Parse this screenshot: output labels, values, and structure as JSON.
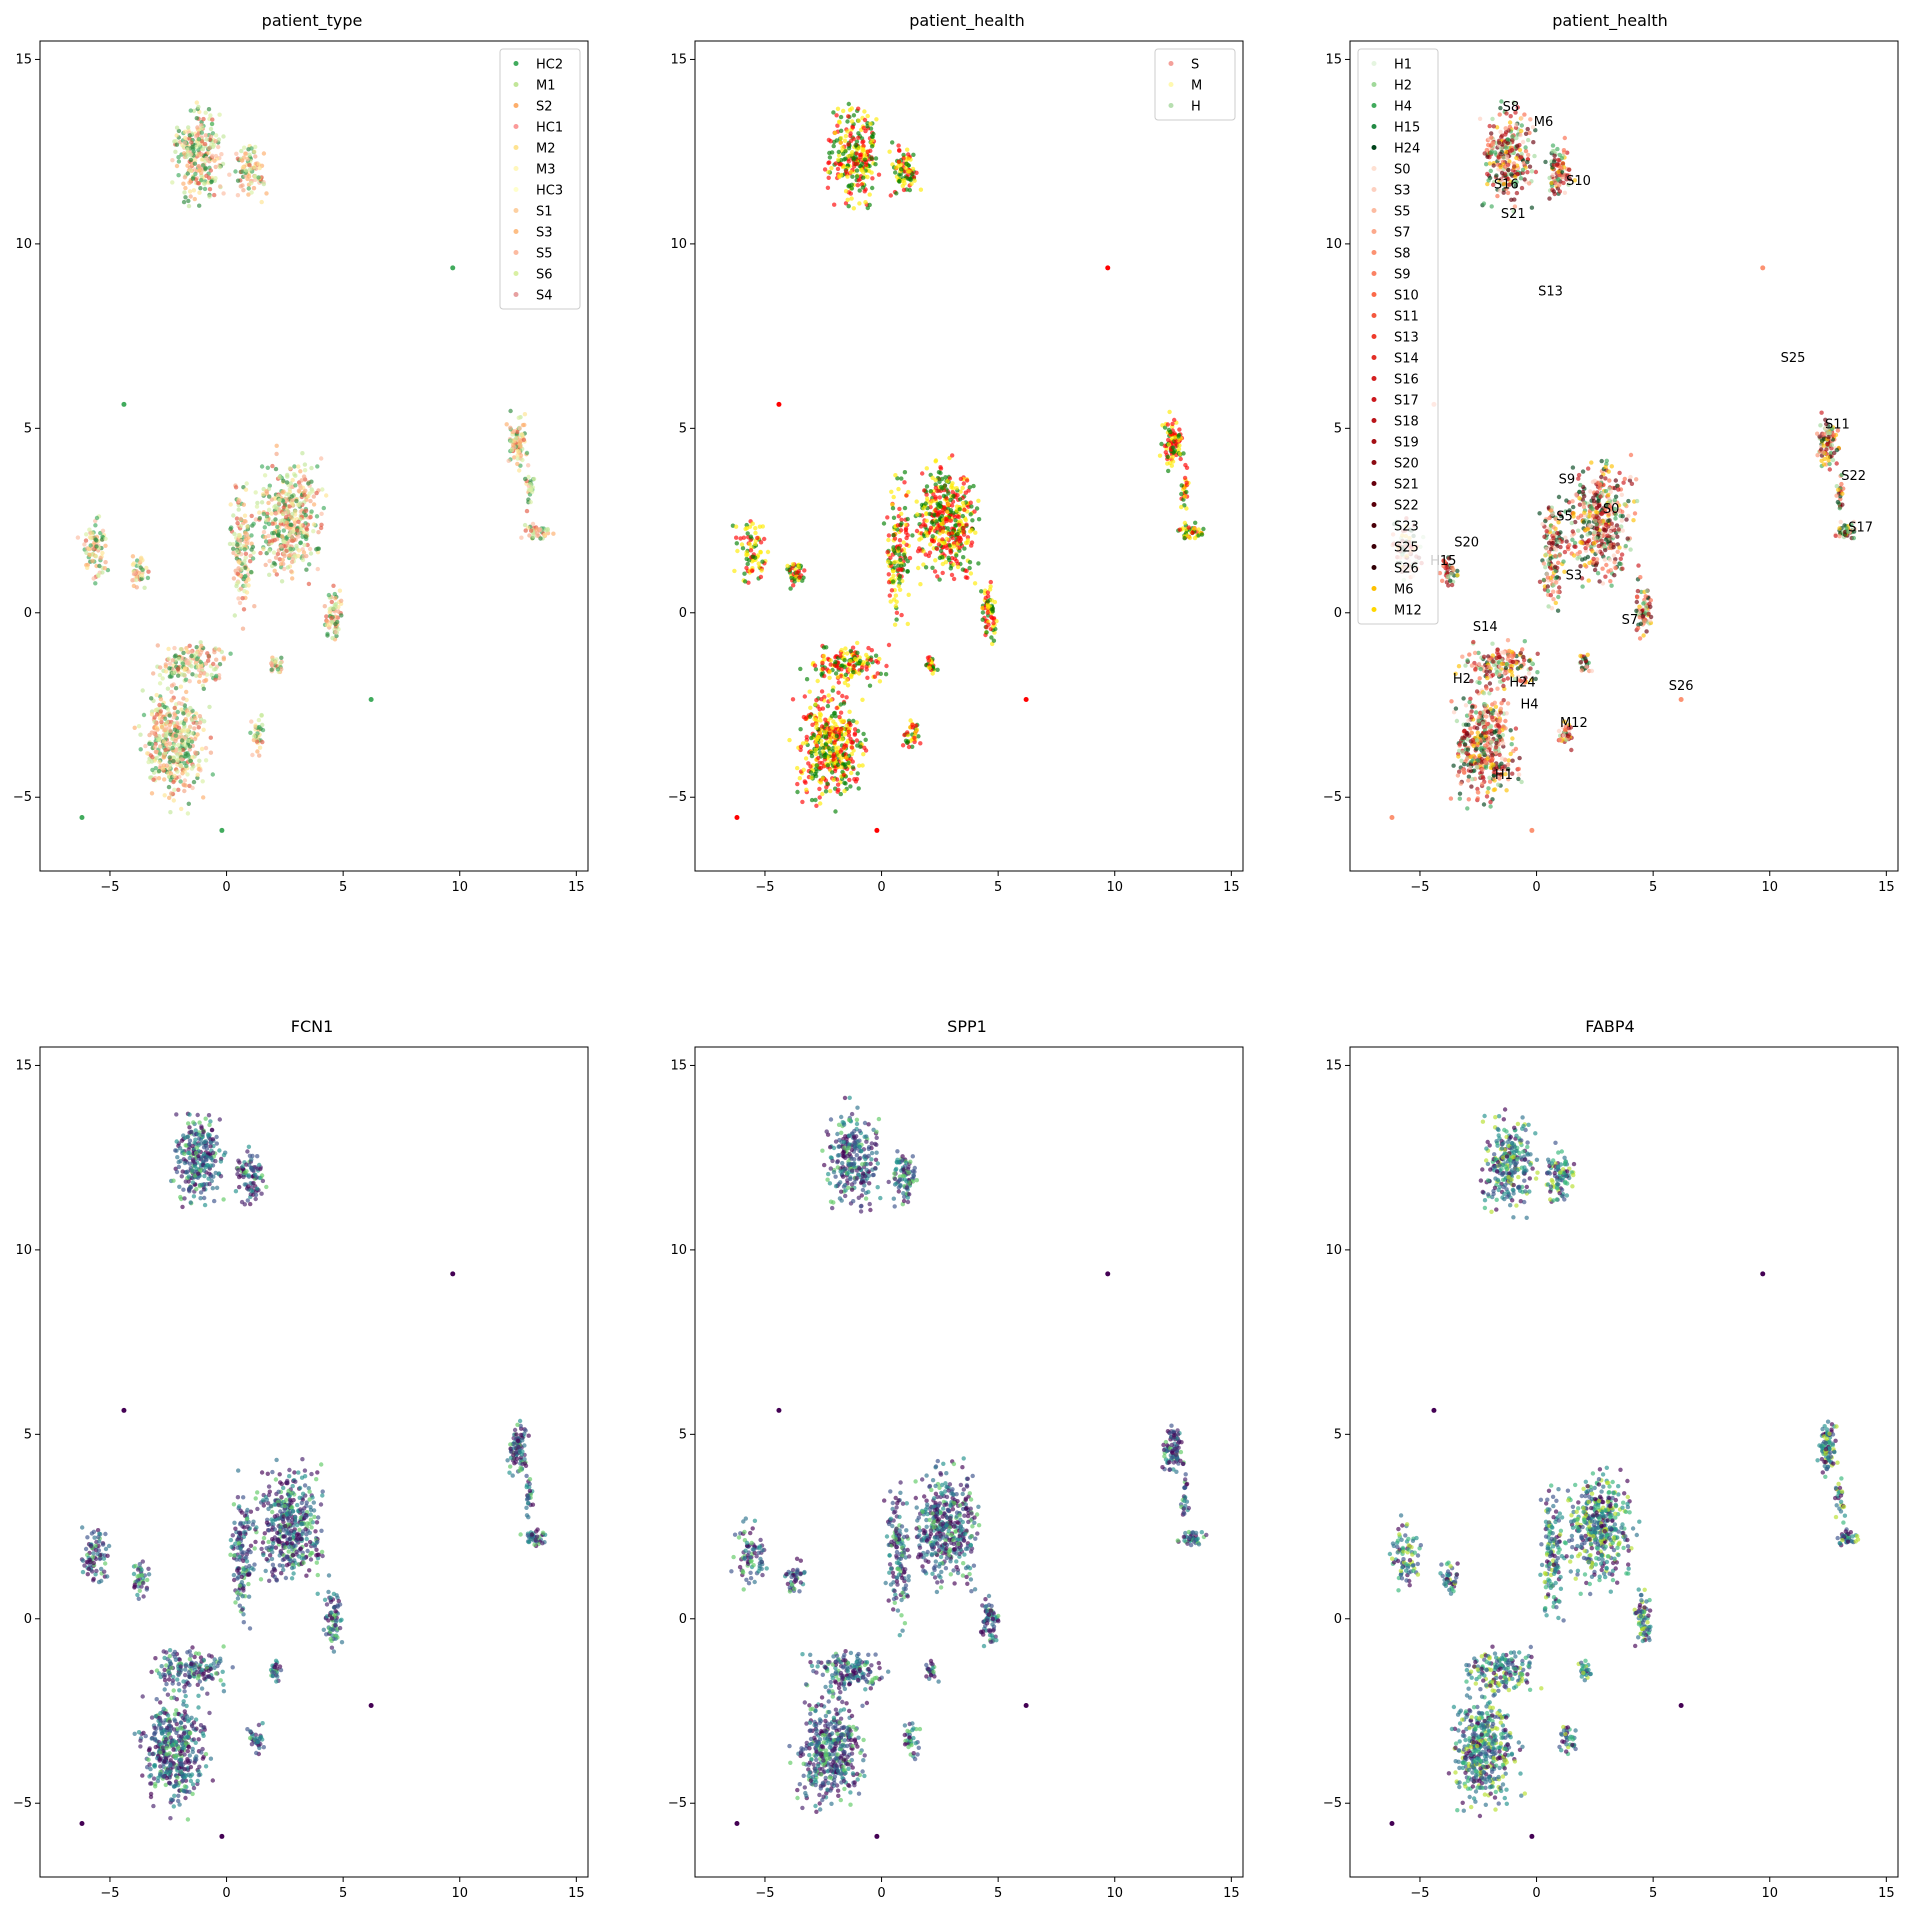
{
  "figure": {
    "panels": [
      {
        "title": "patient_type"
      },
      {
        "title": "patient_health"
      },
      {
        "title": "patient_health"
      },
      {
        "title": "FCN1"
      },
      {
        "title": "SPP1"
      },
      {
        "title": "FABP4"
      }
    ]
  },
  "chart_data": [
    {
      "type": "scatter",
      "title": "patient_type",
      "xlabel": "",
      "ylabel": "",
      "xlim": [
        -8,
        15.5
      ],
      "ylim": [
        -7,
        15.5
      ],
      "xticks": [
        -5,
        0,
        5,
        10,
        15
      ],
      "yticks": [
        -5,
        0,
        5,
        10,
        15
      ],
      "grid": false,
      "legend_position": "upper right",
      "legend": [
        {
          "label": "HC2",
          "color": "#41ab5d"
        },
        {
          "label": "M1",
          "color": "#c2e699"
        },
        {
          "label": "S2",
          "color": "#fdae6b"
        },
        {
          "label": "HC1",
          "color": "#fb9a99"
        },
        {
          "label": "M2",
          "color": "#fee391"
        },
        {
          "label": "M3",
          "color": "#fff7bc"
        },
        {
          "label": "HC3",
          "color": "#ffffcc"
        },
        {
          "label": "S1",
          "color": "#fdd0a2"
        },
        {
          "label": "S3",
          "color": "#fdbe85"
        },
        {
          "label": "S5",
          "color": "#fcbba1"
        },
        {
          "label": "S6",
          "color": "#d9f0a3"
        },
        {
          "label": "S4",
          "color": "#e7a0a0"
        }
      ],
      "colors": [
        "#41ab5d",
        "#2e8b3d",
        "#c2e699",
        "#e35b45",
        "#fdae6b",
        "#f4a582",
        "#fee391",
        "#d9f0a3",
        "#fcbba1"
      ]
    },
    {
      "type": "scatter",
      "title": "patient_health",
      "xlabel": "",
      "ylabel": "",
      "xlim": [
        -8,
        15.5
      ],
      "ylim": [
        -7,
        15.5
      ],
      "xticks": [
        -5,
        0,
        5,
        10,
        15
      ],
      "yticks": [
        -5,
        0,
        5,
        10,
        15
      ],
      "grid": false,
      "legend_position": "upper right",
      "legend": [
        {
          "label": "S",
          "color": "#f4a09a"
        },
        {
          "label": "M",
          "color": "#fff9b0"
        },
        {
          "label": "H",
          "color": "#b7dfb0"
        }
      ],
      "colors": [
        "#ff0000",
        "#ffeb00",
        "#008000"
      ]
    },
    {
      "type": "scatter",
      "title": "patient_health",
      "xlabel": "",
      "ylabel": "",
      "xlim": [
        -8,
        15.5
      ],
      "ylim": [
        -7,
        15.5
      ],
      "xticks": [
        -5,
        0,
        5,
        10,
        15
      ],
      "yticks": [
        -5,
        0,
        5,
        10,
        15
      ],
      "grid": false,
      "legend_position": "upper left",
      "legend": [
        {
          "label": "H1",
          "color": "#e5f5e0"
        },
        {
          "label": "H2",
          "color": "#a1d99b"
        },
        {
          "label": "H4",
          "color": "#41ab5d"
        },
        {
          "label": "H15",
          "color": "#238b45"
        },
        {
          "label": "H24",
          "color": "#00441b"
        },
        {
          "label": "S0",
          "color": "#fee0d2"
        },
        {
          "label": "S3",
          "color": "#fdd0c0"
        },
        {
          "label": "S5",
          "color": "#fcbba1"
        },
        {
          "label": "S7",
          "color": "#fca98c"
        },
        {
          "label": "S8",
          "color": "#fc9272"
        },
        {
          "label": "S9",
          "color": "#fb8264"
        },
        {
          "label": "S10",
          "color": "#fb6a4a"
        },
        {
          "label": "S11",
          "color": "#f4583f"
        },
        {
          "label": "S13",
          "color": "#ef3b2c"
        },
        {
          "label": "S14",
          "color": "#e32f27"
        },
        {
          "label": "S16",
          "color": "#d42020"
        },
        {
          "label": "S17",
          "color": "#cb181d"
        },
        {
          "label": "S18",
          "color": "#b91419"
        },
        {
          "label": "S19",
          "color": "#a50f15"
        },
        {
          "label": "S20",
          "color": "#8c0b12"
        },
        {
          "label": "S21",
          "color": "#67000d"
        },
        {
          "label": "S22",
          "color": "#5a000b"
        },
        {
          "label": "S23",
          "color": "#4a0009"
        },
        {
          "label": "S25",
          "color": "#3d0008"
        },
        {
          "label": "S26",
          "color": "#300006"
        },
        {
          "label": "M6",
          "color": "#fec000"
        },
        {
          "label": "M12",
          "color": "#ffd700"
        }
      ],
      "annotations": [
        {
          "label": "S8",
          "x": -1.1,
          "y": 13.6
        },
        {
          "label": "M6",
          "x": 0.3,
          "y": 13.2
        },
        {
          "label": "S16",
          "x": -1.3,
          "y": 11.5
        },
        {
          "label": "S10",
          "x": 1.8,
          "y": 11.6
        },
        {
          "label": "S21",
          "x": -1.0,
          "y": 10.7
        },
        {
          "label": "S13",
          "x": 0.6,
          "y": 8.6
        },
        {
          "label": "S25",
          "x": 11.0,
          "y": 6.8
        },
        {
          "label": "S11",
          "x": 12.9,
          "y": 5.0
        },
        {
          "label": "S22",
          "x": 13.6,
          "y": 3.6
        },
        {
          "label": "S9",
          "x": 1.3,
          "y": 3.5
        },
        {
          "label": "S17",
          "x": 13.9,
          "y": 2.2
        },
        {
          "label": "S5",
          "x": 1.2,
          "y": 2.5
        },
        {
          "label": "S0",
          "x": 3.2,
          "y": 2.7
        },
        {
          "label": "S20",
          "x": -3.0,
          "y": 1.8
        },
        {
          "label": "H15",
          "x": -4.0,
          "y": 1.3
        },
        {
          "label": "S3",
          "x": 1.6,
          "y": 0.9
        },
        {
          "label": "S7",
          "x": 4.0,
          "y": -0.3
        },
        {
          "label": "S14",
          "x": -2.2,
          "y": -0.5
        },
        {
          "label": "H2",
          "x": -3.2,
          "y": -1.9
        },
        {
          "label": "H24",
          "x": -0.6,
          "y": -2.0
        },
        {
          "label": "S26",
          "x": 6.2,
          "y": -2.1
        },
        {
          "label": "H4",
          "x": -0.3,
          "y": -2.6
        },
        {
          "label": "M12",
          "x": 1.6,
          "y": -3.1
        },
        {
          "label": "H1",
          "x": -1.4,
          "y": -4.5
        }
      ],
      "colors": [
        "#fc9272",
        "#fb6a4a",
        "#fec000",
        "#a1d99b",
        "#41ab5d",
        "#00441b",
        "#cb181d",
        "#a50f15",
        "#fdd0c0",
        "#67000d"
      ]
    },
    {
      "type": "scatter",
      "title": "FCN1",
      "xlabel": "",
      "ylabel": "",
      "xlim": [
        -8,
        15.5
      ],
      "ylim": [
        -7,
        15.5
      ],
      "xticks": [
        -5,
        0,
        5,
        10,
        15
      ],
      "yticks": [
        -5,
        0,
        5,
        10,
        15
      ],
      "grid": false,
      "colormap": "viridis",
      "colors": [
        "#440154",
        "#46216b",
        "#3b528b",
        "#2c728e",
        "#21918c",
        "#5ec962"
      ]
    },
    {
      "type": "scatter",
      "title": "SPP1",
      "xlabel": "",
      "ylabel": "",
      "xlim": [
        -8,
        15.5
      ],
      "ylim": [
        -7,
        15.5
      ],
      "xticks": [
        -5,
        0,
        5,
        10,
        15
      ],
      "yticks": [
        -5,
        0,
        5,
        10,
        15
      ],
      "grid": false,
      "colormap": "viridis",
      "colors": [
        "#440154",
        "#46216b",
        "#3b528b",
        "#2c728e",
        "#21918c",
        "#5ec962"
      ]
    },
    {
      "type": "scatter",
      "title": "FABP4",
      "xlabel": "",
      "ylabel": "",
      "xlim": [
        -8,
        15.5
      ],
      "ylim": [
        -7,
        15.5
      ],
      "xticks": [
        -5,
        0,
        5,
        10,
        15
      ],
      "yticks": [
        -5,
        0,
        5,
        10,
        15
      ],
      "grid": false,
      "colormap": "viridis",
      "colors": [
        "#440154",
        "#3b528b",
        "#2c728e",
        "#21918c",
        "#35b779",
        "#b5de2b"
      ]
    }
  ]
}
